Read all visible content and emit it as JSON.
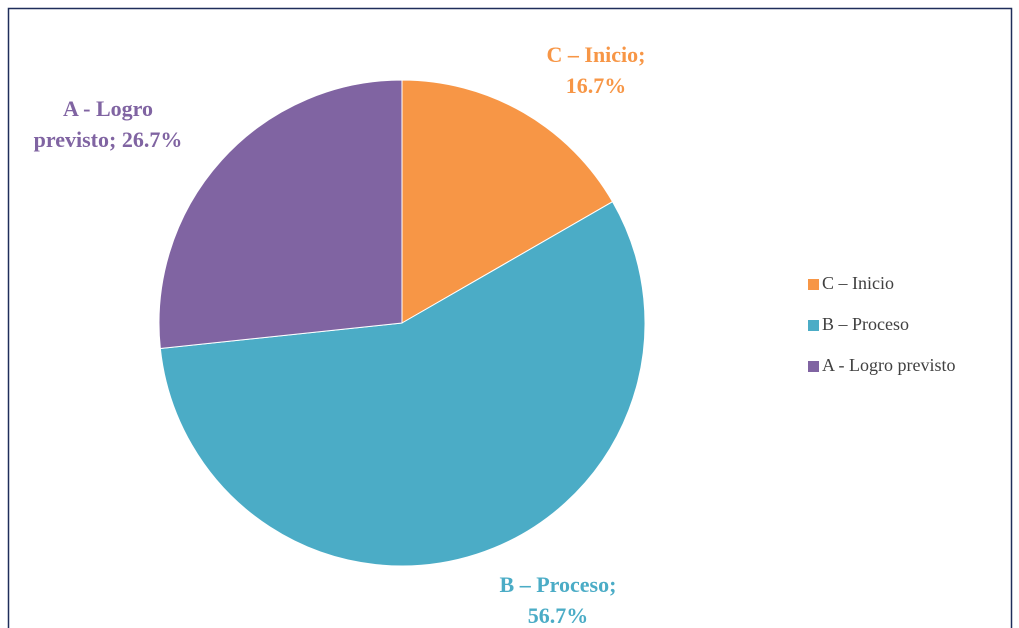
{
  "chart_data": {
    "type": "pie",
    "categories": [
      "C – Inicio",
      "B – Proceso",
      "A - Logro previsto"
    ],
    "values": [
      16.7,
      56.7,
      26.7
    ],
    "value_labels": [
      [
        "C – Inicio;",
        "16.7%"
      ],
      [
        "B – Proceso;",
        "56.7%"
      ],
      [
        "A - Logro",
        "previsto; 26.7%"
      ]
    ],
    "colors": [
      "#F79646",
      "#4BACC6",
      "#8064A2"
    ],
    "legend": "right"
  }
}
